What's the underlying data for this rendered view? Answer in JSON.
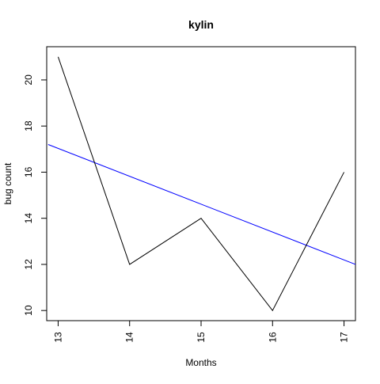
{
  "chart_data": {
    "type": "line",
    "title": "kylin",
    "xlabel": "Months",
    "ylabel": "bug count",
    "x": [
      13,
      14,
      15,
      16,
      17
    ],
    "series": [
      {
        "values": [
          21,
          12,
          14,
          10,
          16
        ],
        "color": "#000000"
      }
    ],
    "trendline": {
      "x": [
        12.86,
        17.16
      ],
      "y": [
        17.2,
        12.0
      ],
      "color": "#0000ff"
    },
    "xlim": [
      12.84,
      17.16
    ],
    "ylim": [
      9.56,
      21.44
    ],
    "xticks": [
      "13",
      "14",
      "15",
      "16",
      "17"
    ],
    "yticks": [
      "10",
      "12",
      "14",
      "16",
      "18",
      "20"
    ],
    "grid": false,
    "legend": "none"
  }
}
